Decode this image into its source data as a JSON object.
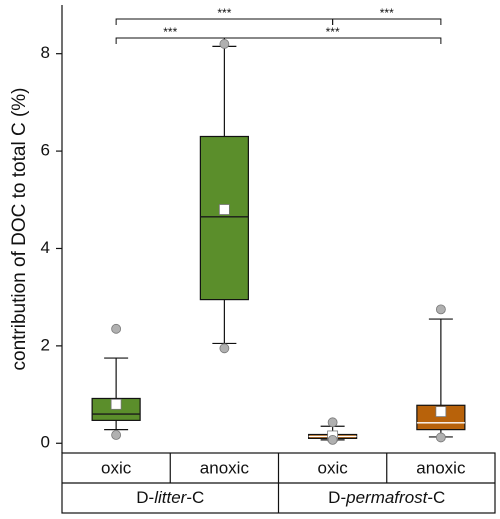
{
  "chart_data": {
    "type": "box",
    "ylabel": "contribution of DOC to total C (%)",
    "categories": [
      "oxic",
      "anoxic",
      "oxic",
      "anoxic"
    ],
    "groups": [
      {
        "parts": [
          "D-",
          "litter",
          "-C"
        ],
        "span": [
          0,
          1
        ]
      },
      {
        "parts": [
          "D-",
          "permafrost",
          "-C"
        ],
        "span": [
          2,
          3
        ]
      }
    ],
    "colors": [
      "#5b8e2b",
      "#5b8e2b",
      "#b8620a",
      "#b8620a"
    ],
    "median_colors": [
      "#1a1a1a",
      "#1a1a1a",
      "#ffffff",
      "#ffffff"
    ],
    "boxes": [
      {
        "whisker_low": 0.28,
        "q1": 0.47,
        "median": 0.6,
        "q3": 0.92,
        "whisker_high": 1.75,
        "mean": 0.8,
        "outliers": [
          2.35,
          0.17
        ]
      },
      {
        "whisker_low": 2.05,
        "q1": 2.95,
        "median": 4.65,
        "q3": 6.3,
        "whisker_high": 8.15,
        "mean": 4.8,
        "outliers": [
          8.2,
          1.95
        ]
      },
      {
        "whisker_low": 0.07,
        "q1": 0.1,
        "median": 0.14,
        "q3": 0.18,
        "whisker_high": 0.35,
        "mean": 0.15,
        "outliers": [
          0.43,
          0.07
        ]
      },
      {
        "whisker_low": 0.13,
        "q1": 0.28,
        "median": 0.42,
        "q3": 0.78,
        "whisker_high": 2.55,
        "mean": 0.65,
        "outliers": [
          2.75,
          0.12
        ]
      }
    ],
    "annotations": [
      {
        "from": 0,
        "to": 2,
        "label": "***"
      },
      {
        "from": 2,
        "to": 3,
        "label": "***"
      },
      {
        "from": 0,
        "to": 1,
        "label": "***"
      },
      {
        "from": 1,
        "to": 3,
        "label": "***"
      }
    ],
    "ylim": [
      -0.2,
      9.0
    ],
    "yticks": [
      0,
      2,
      4,
      6,
      8
    ]
  }
}
